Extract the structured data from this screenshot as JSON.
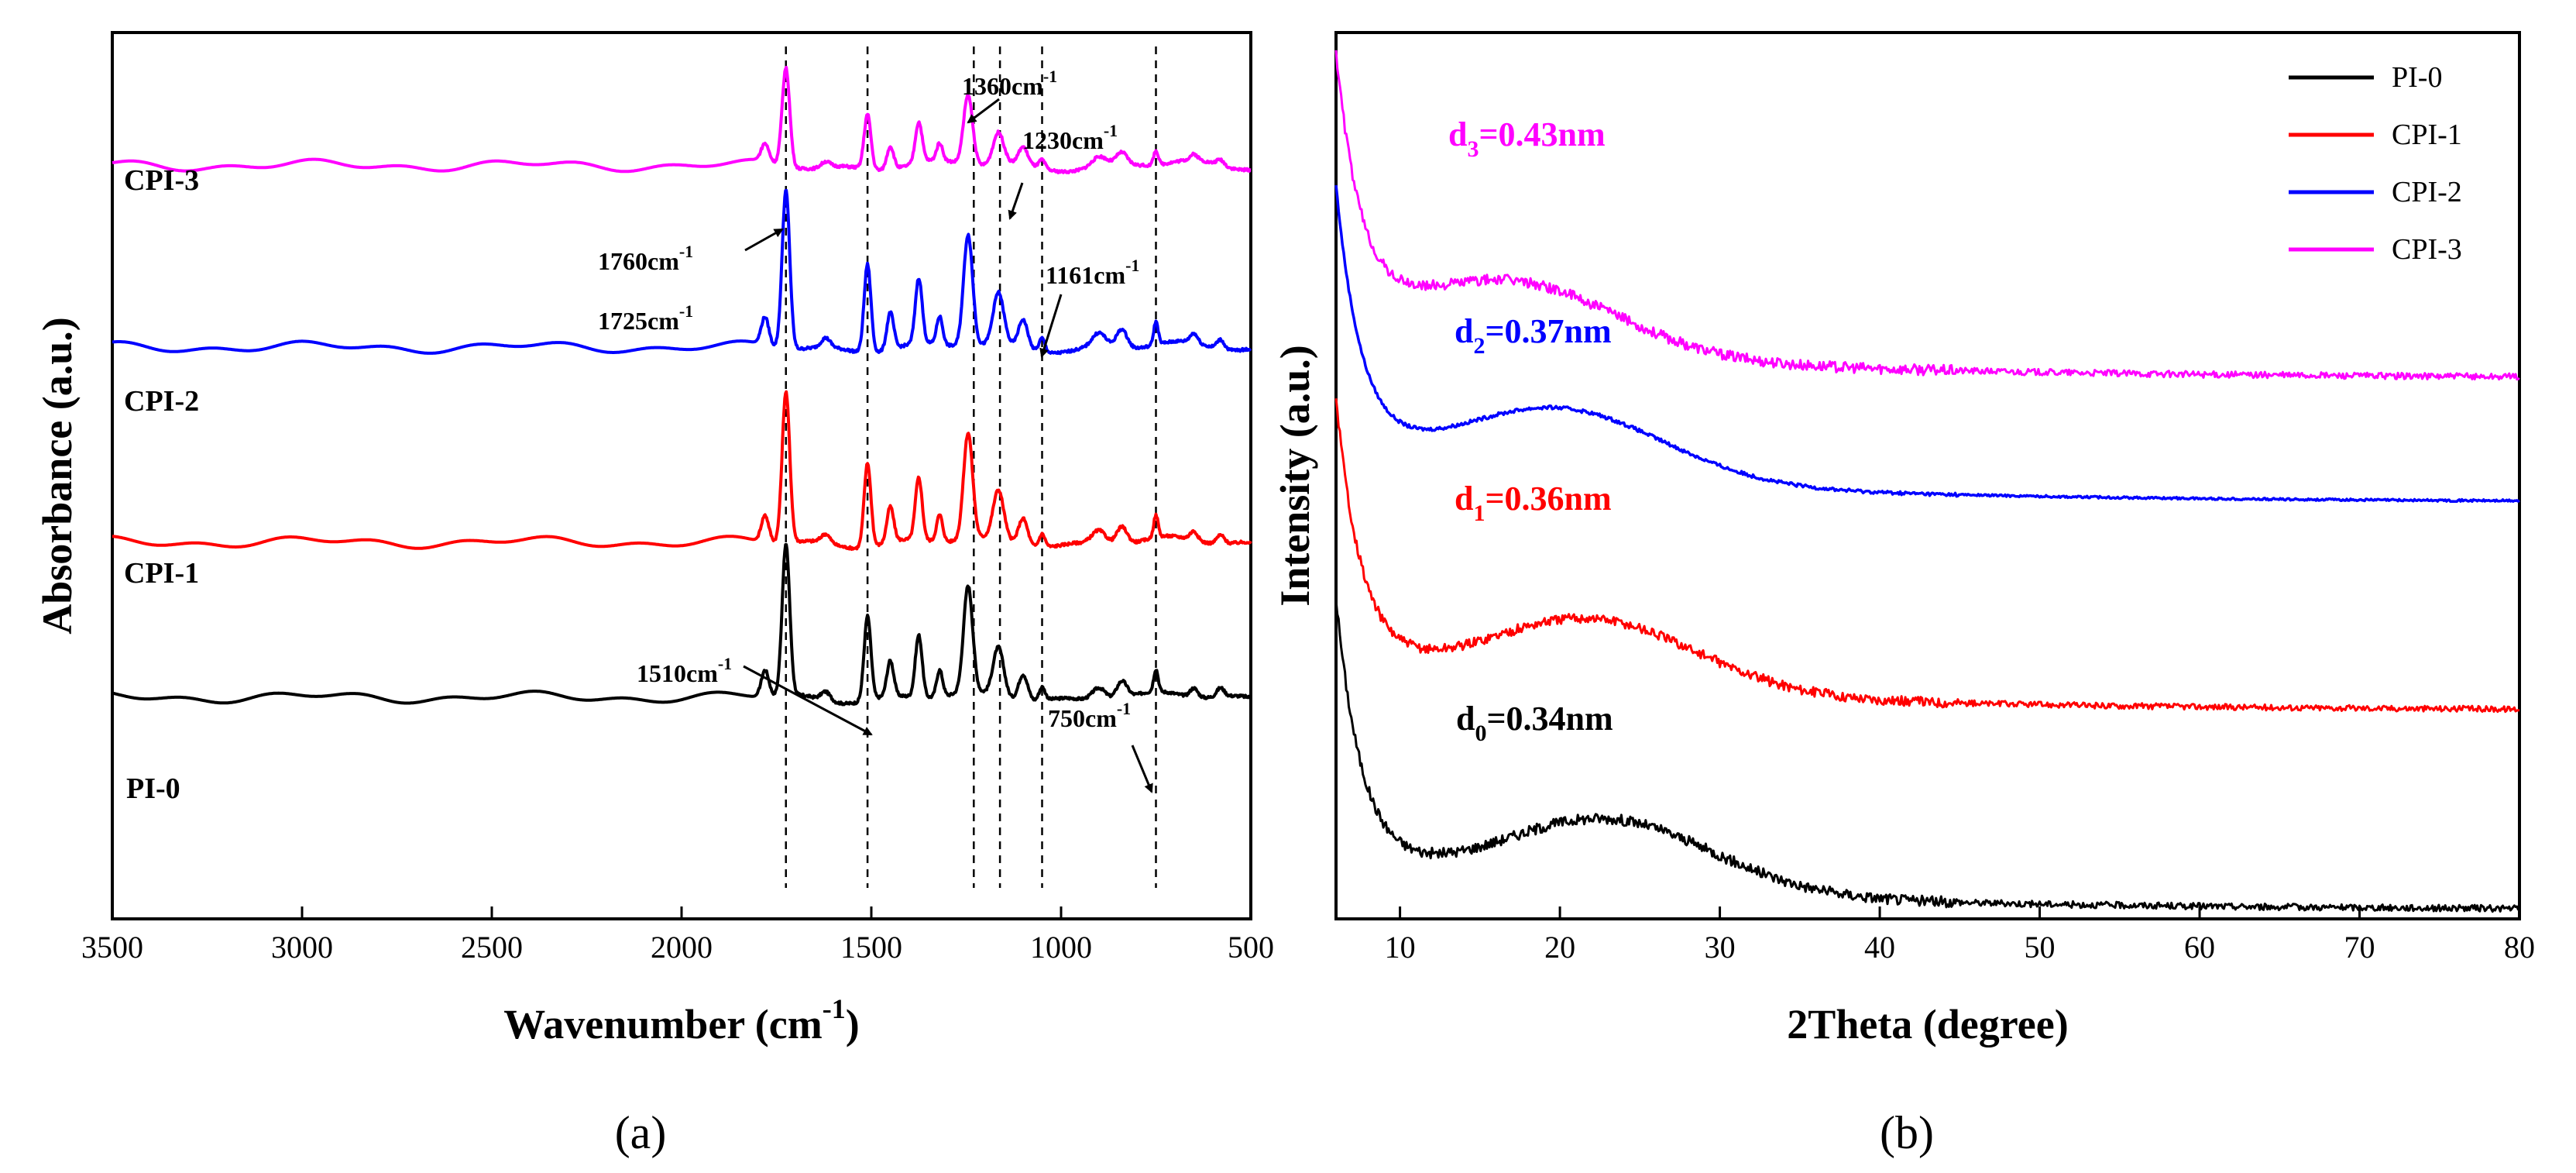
{
  "panel_labels": {
    "a": "(a)",
    "b": "(b)"
  },
  "chart_data": [
    {
      "id": "ftir",
      "type": "line",
      "title": "",
      "xlabel": "Wavenumber (cm",
      "xlabel_sup": "-1",
      "xlabel_end": ")",
      "ylabel": "Absorbance (a.u.)",
      "x_reversed": true,
      "xlim": [
        3500,
        500
      ],
      "ylim": [
        0,
        1
      ],
      "xticks": [
        "3500",
        "3000",
        "2500",
        "2000",
        "1500",
        "1000",
        "500"
      ],
      "xtick_values": [
        3500,
        3000,
        2500,
        2000,
        1500,
        1000,
        500
      ],
      "peaks": [
        1760,
        1725,
        1510,
        1360,
        1230,
        1161,
        750
      ],
      "series": [
        {
          "name": "PI-0",
          "color": "#000000",
          "baseline": 0.25
        },
        {
          "name": "CPI-1",
          "color": "#ff0000",
          "baseline": 0.425
        },
        {
          "name": "CPI-2",
          "color": "#0000ff",
          "baseline": 0.645
        },
        {
          "name": "CPI-3",
          "color": "#ff00ff",
          "baseline": 0.85
        }
      ],
      "dashed_lines_at": [
        1725,
        1510,
        1230,
        1161,
        1050,
        750
      ],
      "annotations": [
        {
          "text": "1760cm",
          "sup": "-1"
        },
        {
          "text": "1725cm",
          "sup": "-1"
        },
        {
          "text": "1510cm",
          "sup": "-1"
        },
        {
          "text": "1360cm",
          "sup": "-1"
        },
        {
          "text": "1230cm",
          "sup": "-1"
        },
        {
          "text": "1161cm",
          "sup": "-1"
        },
        {
          "text": "750cm",
          "sup": "-1"
        }
      ]
    },
    {
      "id": "xrd",
      "type": "line",
      "title": "",
      "xlabel": "2Theta (degree)",
      "ylabel": "Intensity (a.u.)",
      "xlim": [
        6,
        80
      ],
      "ylim": [
        0,
        1
      ],
      "xticks": [
        "10",
        "20",
        "30",
        "40",
        "50",
        "60",
        "70",
        "80"
      ],
      "xtick_values": [
        10,
        20,
        30,
        40,
        50,
        60,
        70,
        80
      ],
      "legend_position": "top-right",
      "series": [
        {
          "name": "PI-0",
          "color": "#000000",
          "offset": 0.0,
          "hump": 23,
          "label": "d",
          "sub": "0",
          "value": "=0.34nm"
        },
        {
          "name": "CPI-1",
          "color": "#ff0000",
          "offset": 0.225,
          "hump": 22,
          "label": "d",
          "sub": "1",
          "value": "=0.36nm"
        },
        {
          "name": "CPI-2",
          "color": "#0000ff",
          "offset": 0.46,
          "hump": 20,
          "label": "d",
          "sub": "2",
          "value": "=0.37nm"
        },
        {
          "name": "CPI-3",
          "color": "#ff00ff",
          "offset": 0.6,
          "hump": 17,
          "label": "d",
          "sub": "3",
          "value": "=0.43nm"
        }
      ]
    }
  ]
}
